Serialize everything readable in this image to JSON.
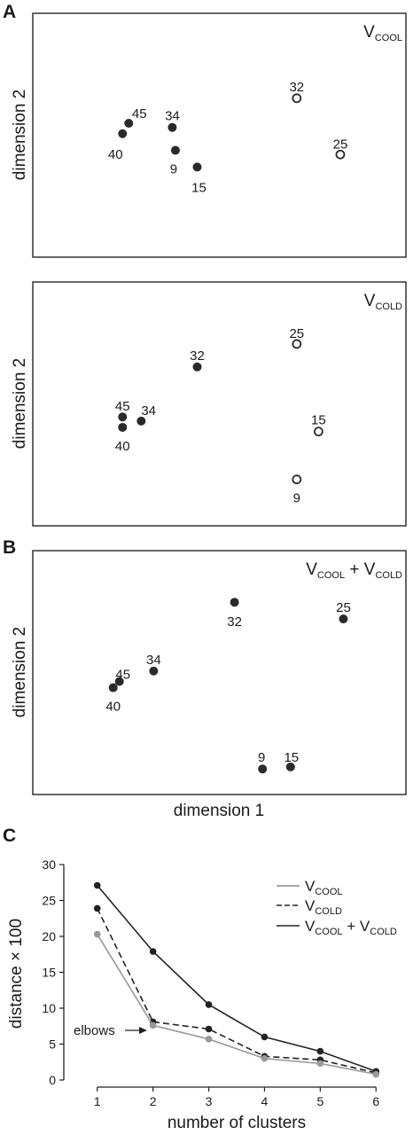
{
  "chart_data": [
    {
      "type": "scatter",
      "panel": "A",
      "title_main": "V",
      "title_sub": "COOL",
      "ylabel": "dimension 2",
      "points": [
        {
          "label": "45",
          "x": 0.28,
          "y": 0.6,
          "filled": true
        },
        {
          "label": "40",
          "x": 0.26,
          "y": 0.55,
          "filled": true
        },
        {
          "label": "34",
          "x": 0.42,
          "y": 0.58,
          "filled": true
        },
        {
          "label": "9",
          "x": 0.43,
          "y": 0.47,
          "filled": true
        },
        {
          "label": "15",
          "x": 0.5,
          "y": 0.39,
          "filled": true
        },
        {
          "label": "32",
          "x": 0.82,
          "y": 0.72,
          "filled": false
        },
        {
          "label": "25",
          "x": 0.96,
          "y": 0.45,
          "filled": false
        }
      ]
    },
    {
      "type": "scatter",
      "panel": "",
      "title_main": "V",
      "title_sub": "COLD",
      "ylabel": "dimension 2",
      "points": [
        {
          "label": "45",
          "x": 0.26,
          "y": 0.48,
          "filled": true
        },
        {
          "label": "40",
          "x": 0.26,
          "y": 0.43,
          "filled": true
        },
        {
          "label": "34",
          "x": 0.32,
          "y": 0.46,
          "filled": true
        },
        {
          "label": "32",
          "x": 0.5,
          "y": 0.72,
          "filled": true
        },
        {
          "label": "25",
          "x": 0.82,
          "y": 0.83,
          "filled": false
        },
        {
          "label": "15",
          "x": 0.89,
          "y": 0.41,
          "filled": false
        },
        {
          "label": "9",
          "x": 0.82,
          "y": 0.18,
          "filled": false
        }
      ]
    },
    {
      "type": "scatter",
      "panel": "B",
      "title_parts": [
        {
          "main": "V",
          "sub": "COOL"
        },
        {
          "sep": " + "
        },
        {
          "main": "V",
          "sub": "COLD"
        }
      ],
      "ylabel": "dimension 2",
      "xlabel": "dimension 1",
      "points": [
        {
          "label": "45",
          "x": 0.25,
          "y": 0.5,
          "filled": true
        },
        {
          "label": "40",
          "x": 0.23,
          "y": 0.47,
          "filled": true
        },
        {
          "label": "34",
          "x": 0.36,
          "y": 0.55,
          "filled": true
        },
        {
          "label": "32",
          "x": 0.62,
          "y": 0.88,
          "filled": true
        },
        {
          "label": "25",
          "x": 0.97,
          "y": 0.8,
          "filled": true
        },
        {
          "label": "9",
          "x": 0.71,
          "y": 0.08,
          "filled": true
        },
        {
          "label": "15",
          "x": 0.8,
          "y": 0.09,
          "filled": true
        }
      ]
    },
    {
      "type": "line",
      "panel": "C",
      "xlabel": "number of clusters",
      "ylabel": "distance × 100",
      "x": [
        1,
        2,
        3,
        4,
        5,
        6
      ],
      "xlim": [
        0.4,
        6.6
      ],
      "ylim": [
        0,
        30
      ],
      "yticks": [
        0,
        5,
        10,
        15,
        20,
        25,
        30
      ],
      "annotation": "elbows",
      "annotation_at": {
        "x": 2,
        "y": 7.8
      },
      "series": [
        {
          "main": "V",
          "sub": "COOL",
          "values": [
            20.3,
            7.6,
            5.7,
            3.0,
            2.3,
            0.8
          ],
          "color": "#999999",
          "dash": "solid"
        },
        {
          "main": "V",
          "sub": "COLD",
          "values": [
            23.9,
            8.1,
            7.1,
            3.3,
            2.8,
            1.0
          ],
          "color": "#222222",
          "dash": "dashed"
        },
        {
          "label_parts": [
            {
              "main": "V",
              "sub": "COOL"
            },
            {
              "sep": " + "
            },
            {
              "main": "V",
              "sub": "COLD"
            }
          ],
          "values": [
            27.1,
            17.9,
            10.5,
            6.0,
            4.0,
            1.2
          ],
          "color": "#222222",
          "dash": "solid"
        }
      ]
    }
  ],
  "colors": {
    "marker": "#2a2a2a",
    "grey": "#999999",
    "frame": "#333333"
  }
}
